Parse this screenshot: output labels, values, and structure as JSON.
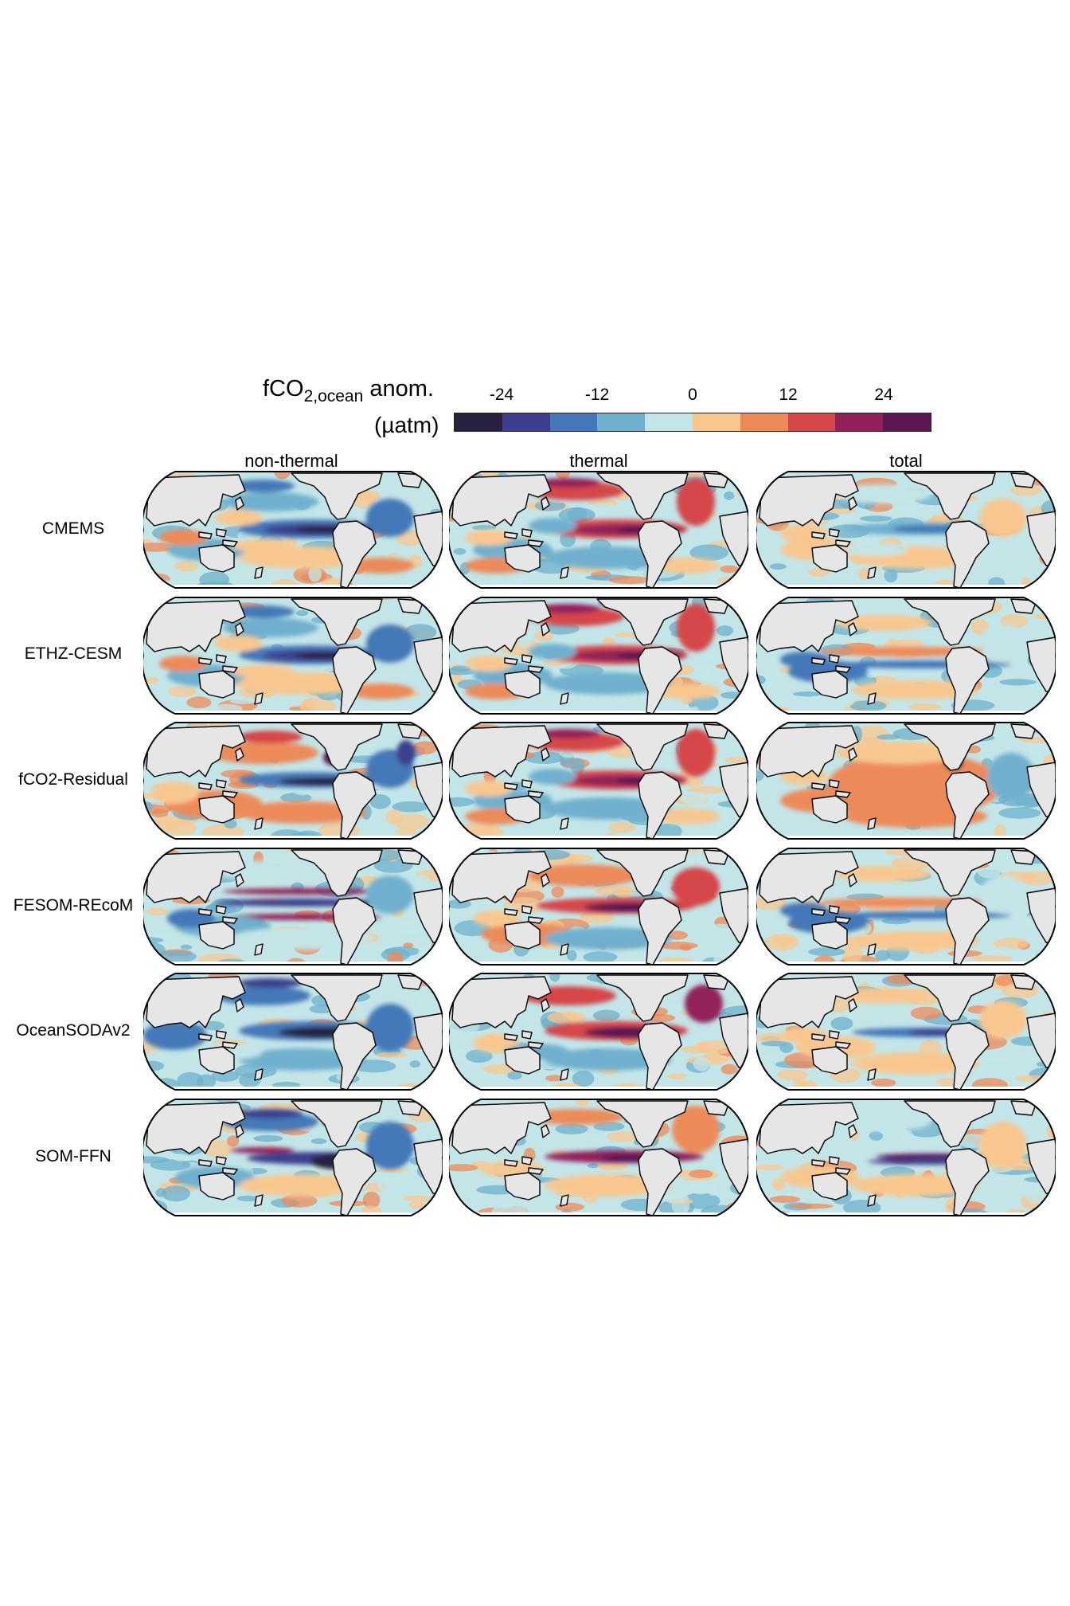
{
  "colorbar": {
    "title": "fCO",
    "title_subscript": "2,ocean",
    "title_suffix": " anom.",
    "unit": "(µatm)",
    "ticks": [
      "-24",
      "-12",
      "0",
      "12",
      "24"
    ],
    "colors": [
      "#27213f",
      "#3d3f8c",
      "#4478b8",
      "#6fb0ce",
      "#c3e5e8",
      "#f8c790",
      "#ed8a5a",
      "#d5474a",
      "#92205a",
      "#5a1752"
    ]
  },
  "columns": [
    "non-thermal",
    "thermal",
    "total"
  ],
  "rows": [
    "CMEMS",
    "ETHZ-CESM",
    "fCO2-Residual",
    "FESOM-REcoM",
    "OceanSODAv2",
    "SOM-FFN"
  ],
  "map_style": {
    "land_color": "#e6e6e6",
    "coast_color": "#000000",
    "ocean_neutral": "#c3e5e8"
  }
}
